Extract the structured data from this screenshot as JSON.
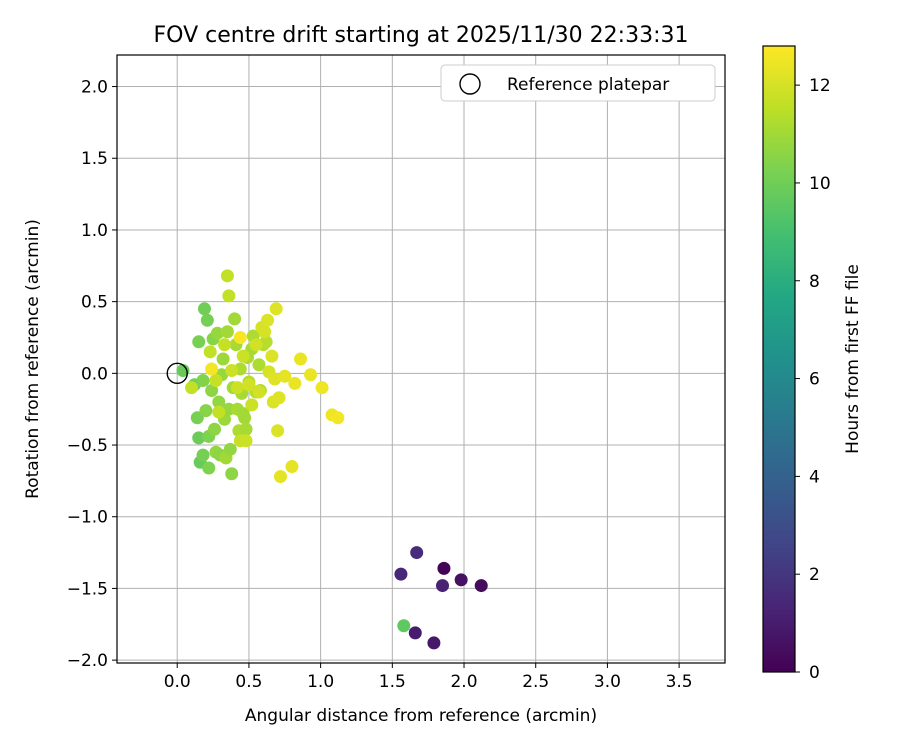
{
  "chart_data": {
    "type": "scatter",
    "title": "FOV centre drift starting at 2025/11/30 22:33:31",
    "xlabel": "Angular distance from reference (arcmin)",
    "ylabel": "Rotation from reference (arcmin)",
    "xlim": [
      -0.42,
      3.82
    ],
    "ylim": [
      -2.02,
      2.22
    ],
    "xticks": [
      0.0,
      0.5,
      1.0,
      1.5,
      2.0,
      2.5,
      3.0,
      3.5
    ],
    "xtick_labels": [
      "0.0",
      "0.5",
      "1.0",
      "1.5",
      "2.0",
      "2.5",
      "3.0",
      "3.5"
    ],
    "yticks": [
      -2.0,
      -1.5,
      -1.0,
      -0.5,
      0.0,
      0.5,
      1.0,
      1.5,
      2.0
    ],
    "ytick_labels": [
      "−2.0",
      "−1.5",
      "−1.0",
      "−0.5",
      "0.0",
      "0.5",
      "1.0",
      "1.5",
      "2.0"
    ],
    "grid": true,
    "legend": {
      "position": "top-right",
      "label": "Reference platepar"
    },
    "reference_point": {
      "x": 0.0,
      "y": 0.0
    },
    "colorbar": {
      "label": "Hours from first FF file",
      "min": 0,
      "max": 12.8,
      "ticks": [
        0,
        2,
        4,
        6,
        8,
        10,
        12
      ],
      "tick_labels": [
        "0",
        "2",
        "4",
        "6",
        "8",
        "10",
        "12"
      ],
      "colormap": "viridis"
    },
    "points": [
      {
        "x": 1.86,
        "y": -1.36,
        "h": 0.1
      },
      {
        "x": 2.12,
        "y": -1.48,
        "h": 0.4
      },
      {
        "x": 1.98,
        "y": -1.44,
        "h": 0.6
      },
      {
        "x": 1.79,
        "y": -1.88,
        "h": 0.8
      },
      {
        "x": 1.66,
        "y": -1.81,
        "h": 1.0
      },
      {
        "x": 1.85,
        "y": -1.48,
        "h": 1.2
      },
      {
        "x": 1.56,
        "y": -1.4,
        "h": 1.4
      },
      {
        "x": 1.67,
        "y": -1.25,
        "h": 1.6
      },
      {
        "x": 1.58,
        "y": -1.76,
        "h": 9.6
      },
      {
        "x": 0.04,
        "y": 0.02,
        "h": 9.8
      },
      {
        "x": 0.12,
        "y": -0.08,
        "h": 10.0
      },
      {
        "x": 0.15,
        "y": -0.45,
        "h": 9.9
      },
      {
        "x": 0.16,
        "y": -0.62,
        "h": 9.8
      },
      {
        "x": 0.18,
        "y": -0.57,
        "h": 10.1
      },
      {
        "x": 0.19,
        "y": 0.45,
        "h": 10.0
      },
      {
        "x": 0.21,
        "y": 0.37,
        "h": 10.1
      },
      {
        "x": 0.22,
        "y": -0.66,
        "h": 10.3
      },
      {
        "x": 0.14,
        "y": -0.31,
        "h": 10.2
      },
      {
        "x": 0.15,
        "y": 0.22,
        "h": 10.2
      },
      {
        "x": 0.18,
        "y": -0.05,
        "h": 10.4
      },
      {
        "x": 0.2,
        "y": -0.26,
        "h": 10.5
      },
      {
        "x": 0.22,
        "y": -0.44,
        "h": 10.3
      },
      {
        "x": 0.24,
        "y": -0.12,
        "h": 10.6
      },
      {
        "x": 0.25,
        "y": 0.24,
        "h": 10.5
      },
      {
        "x": 0.26,
        "y": -0.39,
        "h": 10.6
      },
      {
        "x": 0.27,
        "y": -0.55,
        "h": 10.7
      },
      {
        "x": 0.28,
        "y": 0.28,
        "h": 10.8
      },
      {
        "x": 0.29,
        "y": -0.2,
        "h": 10.7
      },
      {
        "x": 0.3,
        "y": -0.57,
        "h": 10.6
      },
      {
        "x": 0.31,
        "y": -0.01,
        "h": 10.8
      },
      {
        "x": 0.32,
        "y": 0.1,
        "h": 10.9
      },
      {
        "x": 0.33,
        "y": -0.32,
        "h": 10.9
      },
      {
        "x": 0.34,
        "y": -0.59,
        "h": 11.0
      },
      {
        "x": 0.35,
        "y": 0.29,
        "h": 11.0
      },
      {
        "x": 0.36,
        "y": -0.25,
        "h": 10.8
      },
      {
        "x": 0.37,
        "y": -0.53,
        "h": 10.7
      },
      {
        "x": 0.38,
        "y": -0.7,
        "h": 10.6
      },
      {
        "x": 0.39,
        "y": -0.1,
        "h": 11.0
      },
      {
        "x": 0.4,
        "y": 0.38,
        "h": 11.0
      },
      {
        "x": 0.41,
        "y": 0.2,
        "h": 11.1
      },
      {
        "x": 0.42,
        "y": -0.25,
        "h": 11.1
      },
      {
        "x": 0.43,
        "y": -0.4,
        "h": 11.2
      },
      {
        "x": 0.44,
        "y": 0.03,
        "h": 11.2
      },
      {
        "x": 0.45,
        "y": -0.14,
        "h": 11.1
      },
      {
        "x": 0.46,
        "y": -0.28,
        "h": 11.0
      },
      {
        "x": 0.47,
        "y": -0.31,
        "h": 11.0
      },
      {
        "x": 0.48,
        "y": -0.39,
        "h": 11.1
      },
      {
        "x": 0.49,
        "y": 0.11,
        "h": 11.2
      },
      {
        "x": 0.5,
        "y": -0.06,
        "h": 11.3
      },
      {
        "x": 0.52,
        "y": 0.17,
        "h": 11.1
      },
      {
        "x": 0.53,
        "y": 0.26,
        "h": 11.2
      },
      {
        "x": 0.55,
        "y": -0.13,
        "h": 11.3
      },
      {
        "x": 0.57,
        "y": 0.06,
        "h": 11.2
      },
      {
        "x": 0.58,
        "y": -0.12,
        "h": 11.3
      },
      {
        "x": 0.6,
        "y": 0.2,
        "h": 11.3
      },
      {
        "x": 0.62,
        "y": 0.22,
        "h": 11.4
      },
      {
        "x": 0.1,
        "y": -0.1,
        "h": 11.6
      },
      {
        "x": 0.35,
        "y": 0.68,
        "h": 11.6
      },
      {
        "x": 0.36,
        "y": 0.54,
        "h": 11.6
      },
      {
        "x": 0.23,
        "y": 0.15,
        "h": 11.6
      },
      {
        "x": 0.27,
        "y": -0.05,
        "h": 11.7
      },
      {
        "x": 0.29,
        "y": -0.27,
        "h": 11.6
      },
      {
        "x": 0.33,
        "y": 0.2,
        "h": 11.7
      },
      {
        "x": 0.38,
        "y": 0.02,
        "h": 11.8
      },
      {
        "x": 0.42,
        "y": -0.1,
        "h": 11.8
      },
      {
        "x": 0.44,
        "y": -0.47,
        "h": 11.7
      },
      {
        "x": 0.46,
        "y": 0.12,
        "h": 11.8
      },
      {
        "x": 0.48,
        "y": -0.47,
        "h": 11.8
      },
      {
        "x": 0.5,
        "y": -0.08,
        "h": 11.9
      },
      {
        "x": 0.52,
        "y": -0.22,
        "h": 11.8
      },
      {
        "x": 0.55,
        "y": 0.2,
        "h": 11.9
      },
      {
        "x": 0.57,
        "y": -0.13,
        "h": 11.9
      },
      {
        "x": 0.59,
        "y": 0.32,
        "h": 12.0
      },
      {
        "x": 0.61,
        "y": 0.29,
        "h": 12.0
      },
      {
        "x": 0.63,
        "y": 0.37,
        "h": 12.1
      },
      {
        "x": 0.64,
        "y": 0.01,
        "h": 12.0
      },
      {
        "x": 0.66,
        "y": 0.12,
        "h": 12.1
      },
      {
        "x": 0.67,
        "y": -0.2,
        "h": 12.1
      },
      {
        "x": 0.68,
        "y": -0.04,
        "h": 12.2
      },
      {
        "x": 0.69,
        "y": 0.45,
        "h": 12.2
      },
      {
        "x": 0.7,
        "y": -0.4,
        "h": 12.1
      },
      {
        "x": 0.71,
        "y": -0.17,
        "h": 12.2
      },
      {
        "x": 0.72,
        "y": -0.72,
        "h": 12.3
      },
      {
        "x": 0.75,
        "y": -0.02,
        "h": 12.3
      },
      {
        "x": 0.8,
        "y": -0.65,
        "h": 12.3
      },
      {
        "x": 0.82,
        "y": -0.07,
        "h": 12.4
      },
      {
        "x": 0.86,
        "y": 0.1,
        "h": 12.4
      },
      {
        "x": 0.93,
        "y": -0.01,
        "h": 12.4
      },
      {
        "x": 1.01,
        "y": -0.1,
        "h": 12.5
      },
      {
        "x": 1.08,
        "y": -0.29,
        "h": 12.5
      },
      {
        "x": 1.12,
        "y": -0.31,
        "h": 12.6
      },
      {
        "x": 0.24,
        "y": 0.03,
        "h": 12.6
      },
      {
        "x": 0.44,
        "y": 0.25,
        "h": 12.7
      }
    ]
  }
}
